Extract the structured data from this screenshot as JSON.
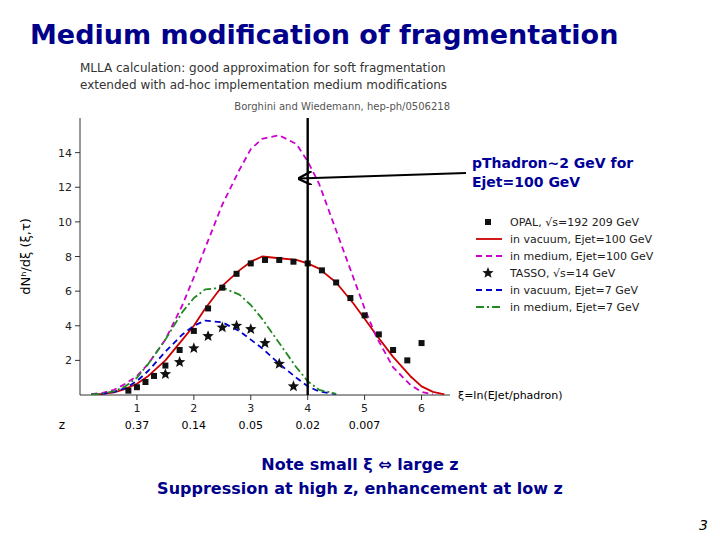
{
  "chart_data": {
    "type": "line",
    "title": "Medium modification of fragmentation",
    "subtitle": [
      "MLLA calculation: good approximation for soft fragmentation",
      "extended with ad-hoc implementation medium modifications"
    ],
    "reference": "Borghini and Wiedemann, hep-ph/0506218",
    "footer": [
      "Note small ξ ⇔ large z",
      "Suppression at high z, enhancement at low z"
    ],
    "page_number": "3",
    "xlabel": "ξ=ln(EJet/phadron)",
    "ylabel": "dNʰ/dξ (ξ,τ)",
    "x2label": "z",
    "xlim": [
      0,
      6.5
    ],
    "ylim": [
      0,
      16
    ],
    "xticks": [
      1,
      2,
      3,
      4,
      5,
      6
    ],
    "yticks": [
      2,
      4,
      6,
      8,
      10,
      12,
      14
    ],
    "x2ticks": [
      {
        "value": 1,
        "label": "0.37"
      },
      {
        "value": 2,
        "label": "0.14"
      },
      {
        "value": 3,
        "label": "0.05"
      },
      {
        "value": 4,
        "label": "0.02"
      },
      {
        "value": 5,
        "label": "0.007"
      }
    ],
    "grid": false,
    "legend": "right",
    "vline": 4.0,
    "annotation": {
      "text": [
        "pThadron~2 GeV for",
        "Ejet=100 GeV"
      ],
      "x": 3.85,
      "y": 12.5
    },
    "series": [
      {
        "name": "OPAL, √s=192 209 GeV",
        "type": "scatter",
        "marker": "square",
        "color": "#111111",
        "x": [
          0.85,
          1.0,
          1.15,
          1.3,
          1.5,
          1.75,
          2.0,
          2.25,
          2.5,
          2.75,
          3.0,
          3.25,
          3.5,
          3.75,
          4.0,
          4.25,
          4.5,
          4.75,
          5.0,
          5.25,
          5.5,
          5.75,
          6.0
        ],
        "values": [
          0.25,
          0.45,
          0.75,
          1.1,
          1.7,
          2.6,
          3.7,
          5.0,
          6.2,
          7.0,
          7.6,
          7.8,
          7.8,
          7.7,
          7.6,
          7.2,
          6.5,
          5.6,
          4.6,
          3.5,
          2.6,
          2.0,
          3.0
        ]
      },
      {
        "name": "in vacuum, Ejet=100 GeV",
        "type": "line",
        "line_style": "solid",
        "color": "#cc0000",
        "x": [
          0.2,
          0.4,
          0.6,
          0.8,
          1.0,
          1.2,
          1.5,
          1.8,
          2.0,
          2.2,
          2.5,
          2.8,
          3.0,
          3.2,
          3.5,
          3.8,
          4.0,
          4.2,
          4.5,
          4.8,
          5.0,
          5.2,
          5.5,
          5.8,
          6.0,
          6.2,
          6.4
        ],
        "values": [
          0.02,
          0.06,
          0.15,
          0.35,
          0.65,
          1.1,
          2.0,
          3.2,
          4.0,
          5.0,
          6.3,
          7.2,
          7.7,
          8.0,
          7.9,
          7.8,
          7.6,
          7.3,
          6.5,
          5.3,
          4.4,
          3.5,
          2.2,
          1.1,
          0.5,
          0.18,
          0.04
        ]
      },
      {
        "name": "in medium, Ejet=100 GeV",
        "type": "line",
        "line_style": "dashed",
        "color": "#cc00cc",
        "x": [
          0.2,
          0.4,
          0.6,
          0.8,
          1.0,
          1.2,
          1.5,
          1.8,
          2.0,
          2.2,
          2.5,
          2.8,
          3.0,
          3.2,
          3.5,
          3.8,
          4.0,
          4.2,
          4.5,
          4.8,
          5.0,
          5.2,
          5.5,
          5.8,
          6.0,
          6.2
        ],
        "values": [
          0.05,
          0.12,
          0.3,
          0.65,
          1.1,
          1.8,
          3.2,
          5.2,
          6.8,
          8.5,
          11.0,
          13.0,
          14.2,
          14.8,
          15.0,
          14.5,
          13.5,
          12.2,
          9.5,
          6.8,
          5.0,
          3.4,
          1.6,
          0.6,
          0.18,
          0.04
        ]
      },
      {
        "name": "TASSO, √s=14 GeV",
        "type": "scatter",
        "marker": "star",
        "color": "#111111",
        "x": [
          1.5,
          1.75,
          2.0,
          2.25,
          2.5,
          2.75,
          3.0,
          3.25,
          3.5,
          3.75
        ],
        "values": [
          1.2,
          1.9,
          2.7,
          3.4,
          3.9,
          4.0,
          3.8,
          3.0,
          1.8,
          0.5
        ]
      },
      {
        "name": "in vacuum, Ejet=7 GeV",
        "type": "line",
        "line_style": "dashed",
        "color": "#0000cc",
        "x": [
          0.2,
          0.4,
          0.6,
          0.8,
          1.0,
          1.2,
          1.5,
          1.8,
          2.0,
          2.2,
          2.5,
          2.8,
          3.0,
          3.2,
          3.5,
          3.8,
          4.0,
          4.2,
          4.5
        ],
        "values": [
          0.02,
          0.06,
          0.18,
          0.4,
          0.8,
          1.4,
          2.5,
          3.5,
          4.0,
          4.3,
          4.2,
          3.7,
          3.2,
          2.7,
          1.8,
          1.0,
          0.5,
          0.2,
          0.05
        ]
      },
      {
        "name": "in medium, Ejet=7 GeV",
        "type": "line",
        "line_style": "dashdot",
        "color": "#228822",
        "x": [
          0.2,
          0.4,
          0.6,
          0.8,
          1.0,
          1.2,
          1.5,
          1.8,
          2.0,
          2.2,
          2.5,
          2.8,
          3.0,
          3.2,
          3.5,
          3.8,
          4.0,
          4.2,
          4.5
        ],
        "values": [
          0.03,
          0.08,
          0.22,
          0.5,
          1.0,
          1.8,
          3.2,
          4.8,
          5.6,
          6.1,
          6.2,
          5.8,
          5.2,
          4.4,
          3.0,
          1.6,
          0.8,
          0.3,
          0.07
        ]
      }
    ]
  }
}
